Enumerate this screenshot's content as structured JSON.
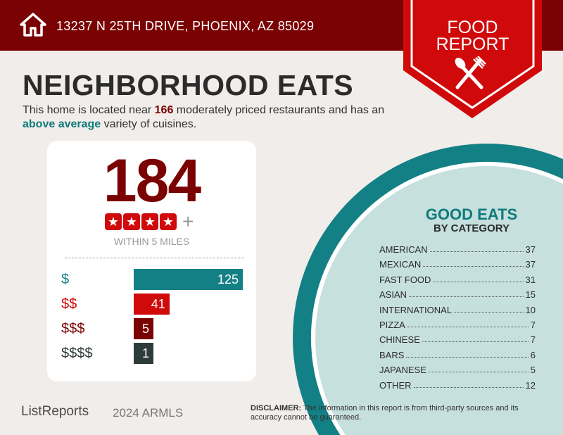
{
  "header": {
    "address": "13237 N 25TH DRIVE, PHOENIX, AZ 85029",
    "icon": "home-icon"
  },
  "badge": {
    "line1": "FOOD",
    "line2": "REPORT",
    "icon": "utensils-icon"
  },
  "title": "NEIGHBORHOOD EATS",
  "subtitle": {
    "pre": "This home is located near ",
    "count": "166",
    "mid": " moderately priced restaurants and has an ",
    "variety": "above average",
    "post": " variety of cuisines."
  },
  "summary": {
    "total": "184",
    "stars": 4,
    "plus": "+",
    "within": "WITHIN 5 MILES"
  },
  "price_tiers": [
    {
      "label": "$",
      "value": "125",
      "color": "#138085"
    },
    {
      "label": "$$",
      "value": "41",
      "color": "#d0090b"
    },
    {
      "label": "$$$",
      "value": "5",
      "color": "#7b0202"
    },
    {
      "label": "$$$$",
      "value": "1",
      "color": "#2e3b3b"
    }
  ],
  "good_eats": {
    "title": "GOOD EATS",
    "subtitle": "BY CATEGORY",
    "categories": [
      {
        "name": "AMERICAN",
        "count": "37"
      },
      {
        "name": "MEXICAN",
        "count": "37"
      },
      {
        "name": "FAST FOOD",
        "count": "31"
      },
      {
        "name": "ASIAN",
        "count": "15"
      },
      {
        "name": "INTERNATIONAL",
        "count": "10"
      },
      {
        "name": "PIZZA",
        "count": "7"
      },
      {
        "name": "CHINESE",
        "count": "7"
      },
      {
        "name": "BARS",
        "count": "6"
      },
      {
        "name": "JAPANESE",
        "count": "5"
      },
      {
        "name": "OTHER",
        "count": "12"
      }
    ]
  },
  "footer": {
    "logo": "ListReports",
    "watermark": "2024 ARMLS",
    "disclaimer_label": "DISCLAIMER:",
    "disclaimer": " The information in this report is from third-party sources and its accuracy cannot be guaranteed."
  },
  "colors": {
    "dark_red": "#7b0202",
    "red": "#d0090b",
    "teal": "#138085",
    "light_teal": "#c6e0de"
  }
}
